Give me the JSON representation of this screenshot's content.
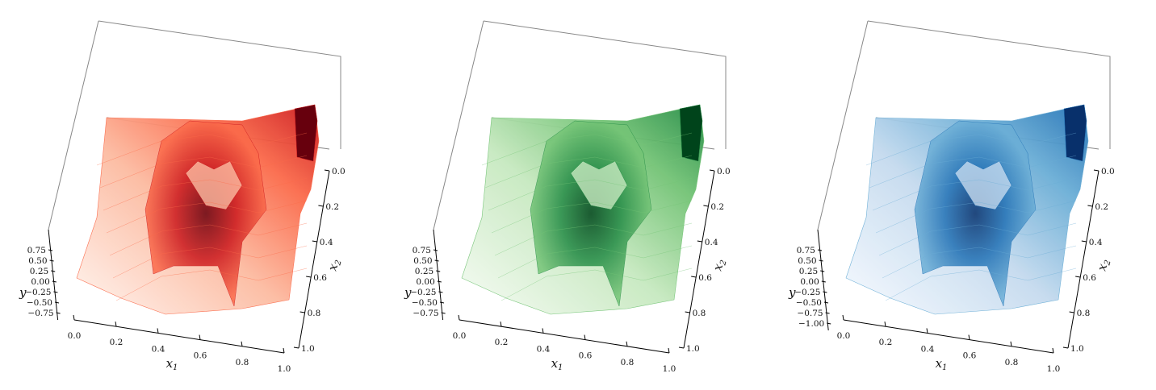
{
  "chart_data": [
    {
      "type": "surface",
      "colormap": "Reds",
      "colors": [
        "#fff5f0",
        "#fcbba1",
        "#fb6a4a",
        "#cb181d",
        "#67000d"
      ],
      "xlabel": "x",
      "xlabel_sub": "1",
      "ylabel": "x",
      "ylabel_sub": "2",
      "zlabel": "y",
      "xlim": [
        0,
        1
      ],
      "ylim": [
        0,
        1
      ],
      "zlim": [
        -0.75,
        0.75
      ],
      "x_ticks": [
        "0.0",
        "0.2",
        "0.4",
        "0.6",
        "0.8",
        "1.0"
      ],
      "y_ticks": [
        "0.0",
        "0.2",
        "0.4",
        "0.6",
        "0.8",
        "1.0"
      ],
      "z_ticks": [
        "0.75",
        "0.50",
        "0.25",
        "0.00",
        "−0.25",
        "−0.50",
        "−0.75"
      ]
    },
    {
      "type": "surface",
      "colormap": "Greens",
      "colors": [
        "#f7fcf5",
        "#c7e9c0",
        "#74c476",
        "#238b45",
        "#00441b"
      ],
      "xlabel": "x",
      "xlabel_sub": "1",
      "ylabel": "x",
      "ylabel_sub": "2",
      "zlabel": "y",
      "xlim": [
        0,
        1
      ],
      "ylim": [
        0,
        1
      ],
      "zlim": [
        -0.75,
        0.75
      ],
      "x_ticks": [
        "0.0",
        "0.2",
        "0.4",
        "0.6",
        "0.8",
        "1.0"
      ],
      "y_ticks": [
        "0.0",
        "0.2",
        "0.4",
        "0.6",
        "0.8",
        "1.0"
      ],
      "z_ticks": [
        "0.75",
        "0.50",
        "0.25",
        "0.00",
        "−0.25",
        "−0.50",
        "−0.75"
      ]
    },
    {
      "type": "surface",
      "colormap": "Blues",
      "colors": [
        "#f7fbff",
        "#c6dbef",
        "#6baed6",
        "#2171b5",
        "#08306b"
      ],
      "xlabel": "x",
      "xlabel_sub": "1",
      "ylabel": "x",
      "ylabel_sub": "2",
      "zlabel": "y",
      "xlim": [
        0,
        1
      ],
      "ylim": [
        0,
        1
      ],
      "zlim": [
        -1.0,
        0.75
      ],
      "x_ticks": [
        "0.0",
        "0.2",
        "0.4",
        "0.6",
        "0.8",
        "1.0"
      ],
      "y_ticks": [
        "0.0",
        "0.2",
        "0.4",
        "0.6",
        "0.8",
        "1.0"
      ],
      "z_ticks": [
        "0.75",
        "0.50",
        "0.25",
        "0.00",
        "−0.25",
        "−0.50",
        "−0.75",
        "−1.00"
      ]
    }
  ]
}
